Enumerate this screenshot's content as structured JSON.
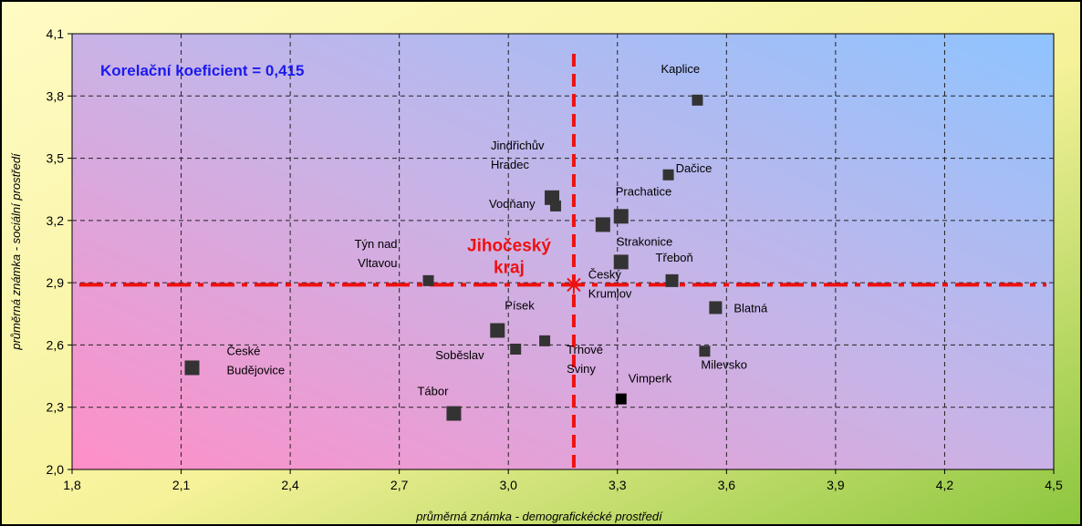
{
  "chart_data": {
    "type": "scatter",
    "annotation": "Korelační koeficient = 0,415",
    "xlabel": "průměrná známka - demografickécké prostředí",
    "ylabel": "průměrná známka - sociální prostředí",
    "xlim": [
      1.8,
      4.5
    ],
    "ylim": [
      2.0,
      4.1
    ],
    "x_ticks": [
      1.8,
      2.1,
      2.4,
      2.7,
      3.0,
      3.3,
      3.6,
      3.9,
      4.2,
      4.5
    ],
    "y_ticks": [
      2.0,
      2.3,
      2.6,
      2.9,
      3.2,
      3.5,
      3.8,
      4.1
    ],
    "x_tick_labels": [
      "1,8",
      "2,1",
      "2,4",
      "2,7",
      "3,0",
      "3,3",
      "3,6",
      "3,9",
      "4,2",
      "4,5"
    ],
    "y_tick_labels": [
      "2,0",
      "2,3",
      "2,6",
      "2,9",
      "3,2",
      "3,5",
      "3,8",
      "4,1"
    ],
    "grid": true,
    "reference": {
      "x": 3.18,
      "y": 2.89,
      "label_lines": [
        "Jihočeský",
        "kraj"
      ],
      "color": "#ee1111"
    },
    "points": [
      {
        "label_lines": [
          "České",
          "Budějovice"
        ],
        "x": 2.13,
        "y": 2.49
      },
      {
        "label_lines": [
          "Tábor"
        ],
        "x": 2.85,
        "y": 2.27
      },
      {
        "label_lines": [
          "Týn nad",
          "Vltavou"
        ],
        "x": 2.78,
        "y": 2.91
      },
      {
        "label_lines": [
          "Soběslav"
        ],
        "x": 3.02,
        "y": 2.58
      },
      {
        "label_lines": [
          "Písek"
        ],
        "x": 2.97,
        "y": 2.67
      },
      {
        "label_lines": [
          "Trhové",
          "Sviny"
        ],
        "x": 3.1,
        "y": 2.62
      },
      {
        "label_lines": [
          "Jindřichův",
          "Hradec"
        ],
        "x": 3.12,
        "y": 3.31
      },
      {
        "label_lines": [
          "Vodňany"
        ],
        "x": 3.13,
        "y": 3.27
      },
      {
        "label_lines": [
          "Strakonice"
        ],
        "x": 3.26,
        "y": 3.18
      },
      {
        "label_lines": [
          "Prachatice"
        ],
        "x": 3.31,
        "y": 3.22
      },
      {
        "label_lines": [
          "Český",
          "Krumlov"
        ],
        "x": 3.31,
        "y": 3.0
      },
      {
        "label_lines": [
          "Vimperk"
        ],
        "x": 3.31,
        "y": 2.34
      },
      {
        "label_lines": [
          "Dačice"
        ],
        "x": 3.44,
        "y": 3.42
      },
      {
        "label_lines": [
          "Třeboň"
        ],
        "x": 3.45,
        "y": 2.91
      },
      {
        "label_lines": [
          "Kaplice"
        ],
        "x": 3.52,
        "y": 3.78
      },
      {
        "label_lines": [
          "Milevsko"
        ],
        "x": 3.54,
        "y": 2.57
      },
      {
        "label_lines": [
          "Blatná"
        ],
        "x": 3.57,
        "y": 2.78
      }
    ],
    "colors": {
      "outer_top": "#fbf6a6",
      "outer_bottom": "#8cc63e",
      "plot_pink": "#ff8fc8",
      "plot_blue": "#8fc4ff",
      "marker": "#333333",
      "annotation": "#1a1aee"
    }
  }
}
